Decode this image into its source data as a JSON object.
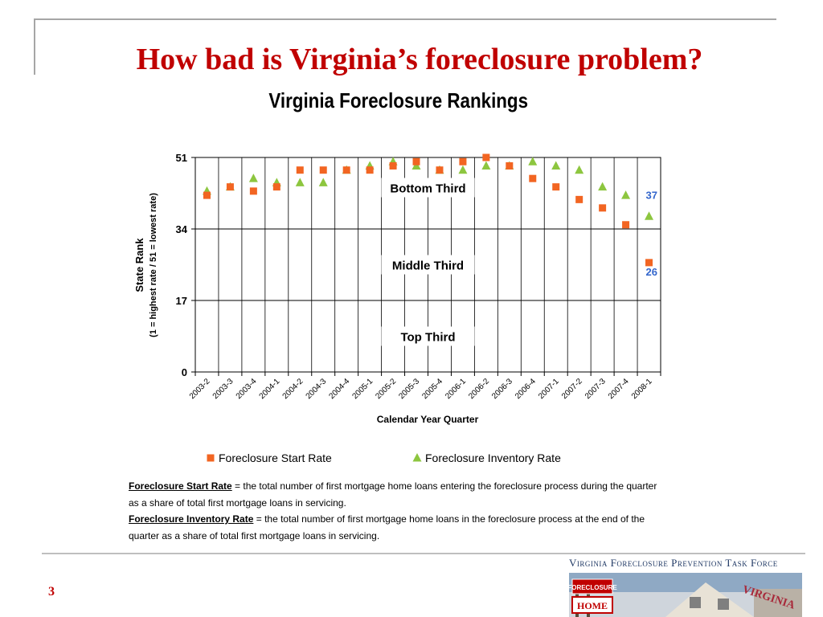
{
  "slide": {
    "title": "How bad is Virginia’s foreclosure problem?",
    "page_number": "3"
  },
  "definitions": {
    "start_term": "Foreclosure Start Rate",
    "start_text": " = the total number of first mortgage home loans entering the foreclosure process during the quarter as a share of total first mortgage loans in servicing.",
    "inventory_term": "Foreclosure Inventory Rate",
    "inventory_text": " = the total number of first mortgage home loans in the foreclosure process at the end of the quarter as a share of total first mortgage loans in servicing."
  },
  "logo": {
    "header": "Virginia Foreclosure Prevention Task Force",
    "sign_text": "FORECLOSURE",
    "sign_sub": "HOME",
    "state_text": "VIRGINIA"
  },
  "colors": {
    "title_red": "#c00000",
    "start_orange": "#f26522",
    "inventory_green": "#8dc63f",
    "callout_blue": "#3366cc",
    "logo_navy": "#1f3864"
  },
  "chart_data": {
    "type": "scatter",
    "title": "Virginia Foreclosure Rankings",
    "xlabel": "Calendar Year Quarter",
    "ylabel": "State Rank",
    "ylabel_sub": "(1 = highest rate / 51 = lowest rate)",
    "ylim": [
      0,
      51
    ],
    "yticks": [
      "0",
      "17",
      "34",
      "51"
    ],
    "categories": [
      "2003-2",
      "2003-3",
      "2003-4",
      "2004-1",
      "2004-2",
      "2004-3",
      "2004-4",
      "2005-1",
      "2005-2",
      "2005-3",
      "2005-4",
      "2006-1",
      "2006-2",
      "2006-3",
      "2006-4",
      "2007-1",
      "2007-2",
      "2007-3",
      "2007-4",
      "2008-1"
    ],
    "grid": "vertical",
    "legend_position": "bottom",
    "series": [
      {
        "name": "Foreclosure Start Rate",
        "marker": "square",
        "color": "#f26522",
        "values": [
          42,
          44,
          43,
          44,
          48,
          48,
          48,
          48,
          49,
          50,
          48,
          50,
          51,
          49,
          46,
          44,
          41,
          39,
          35,
          26
        ]
      },
      {
        "name": "Foreclosure Inventory Rate",
        "marker": "triangle",
        "color": "#8dc63f",
        "values": [
          43,
          44,
          46,
          45,
          45,
          45,
          48,
          49,
          50,
          49,
          48,
          48,
          49,
          49,
          50,
          49,
          48,
          44,
          42,
          37
        ]
      }
    ],
    "zone_labels": [
      "Bottom Third",
      "Middle Third",
      "Top Third"
    ],
    "end_labels": [
      "37",
      "26"
    ]
  }
}
